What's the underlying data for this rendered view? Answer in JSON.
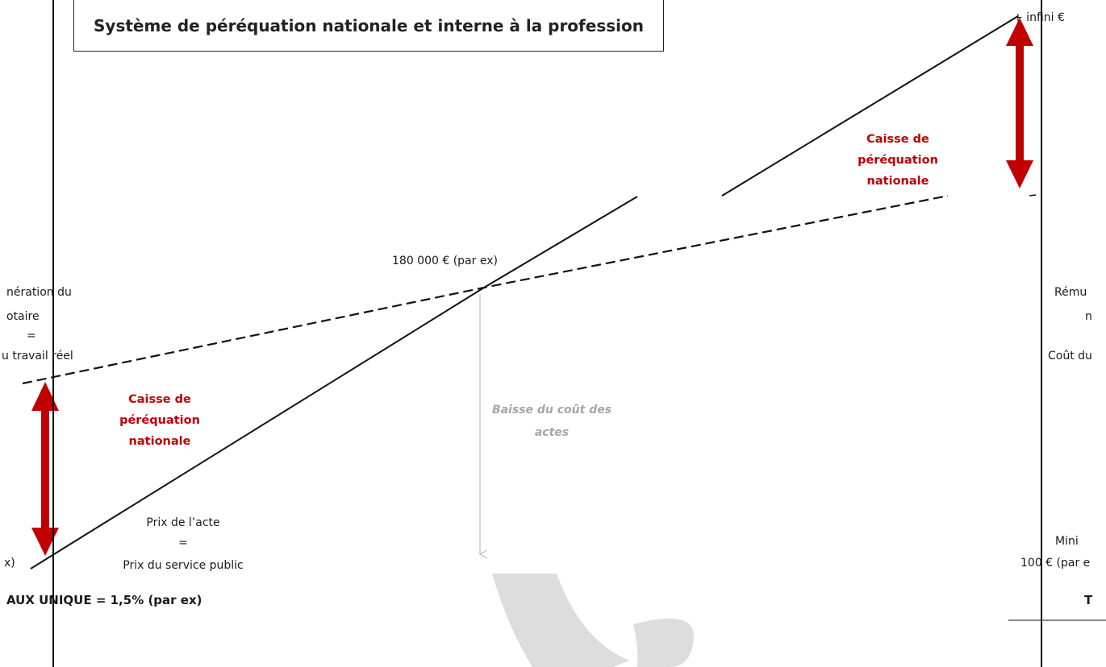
{
  "title": "Système de péréquation nationale et interne à la profession",
  "top_right_label": "+ infini €",
  "center_value_label": "180 000 € (par ex)",
  "left_panel": {
    "remuneration_lines": [
      "nération du",
      "otaire",
      "=",
      "u travail réel"
    ],
    "caisse_lines": [
      "Caisse de",
      "péréquation",
      "nationale"
    ],
    "min_label": "x)",
    "prix_lines": [
      "Prix de l’acte",
      "=",
      "Prix du service public"
    ],
    "taux_label": "AUX UNIQUE = 1,5% (par ex)"
  },
  "right_panel": {
    "caisse_lines": [
      "Caisse de",
      "péréquation",
      "nationale"
    ],
    "remuneration_lines": [
      "Rému",
      "n",
      "Coût du"
    ],
    "mini_label": "Mini",
    "mini_value": "100 € (par e",
    "t_label": "T"
  },
  "baisse_lines": [
    "Baisse du coût des",
    "actes"
  ],
  "colors": {
    "arrow_red": "#c00000",
    "text_red": "#c00000",
    "grey_arrow": "#bfbfbf",
    "watermark": "#d9d9d9",
    "line": "#111111"
  }
}
